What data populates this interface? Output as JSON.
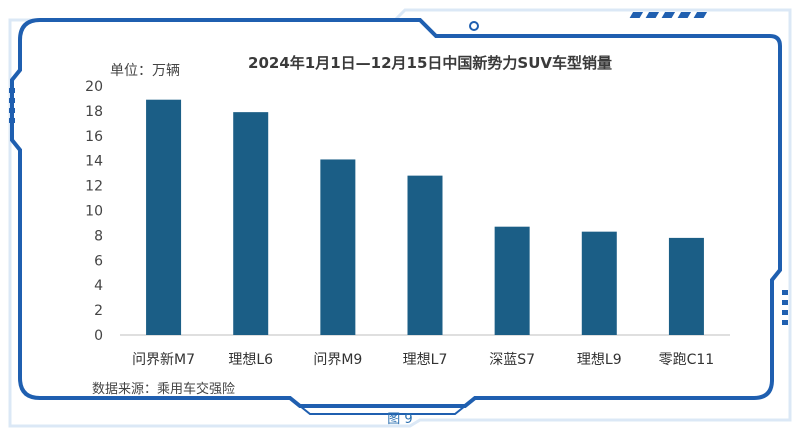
{
  "chart_data": {
    "type": "bar",
    "title": "2024年1月1日—12月15日中国新势力SUV车型销量",
    "unit_label": "单位：万辆",
    "categories": [
      "问界新M7",
      "理想L6",
      "问界M9",
      "理想L7",
      "深蓝S7",
      "理想L9",
      "零跑C11"
    ],
    "values": [
      18.9,
      17.9,
      14.1,
      12.8,
      8.7,
      8.3,
      7.8
    ],
    "ylim": [
      0,
      20
    ],
    "yticks": [
      0,
      2,
      4,
      6,
      8,
      10,
      12,
      14,
      16,
      18,
      20
    ],
    "grid": false,
    "bar_color": "#1b5e86"
  },
  "source_note": "数据来源：乘用车交强险",
  "figure_label": "图 9",
  "colors": {
    "frame": "#1f5fb0",
    "frame_light": "#dbe8f6"
  }
}
